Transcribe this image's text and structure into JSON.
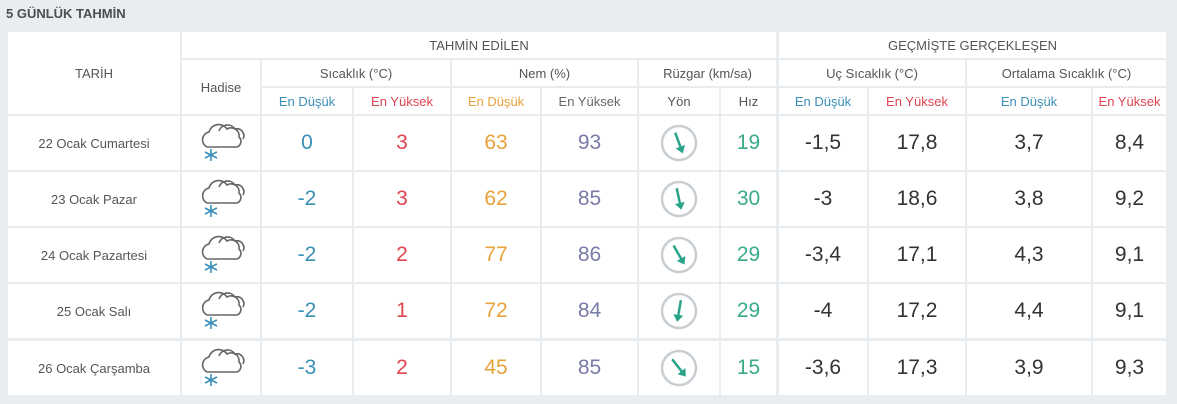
{
  "title": "5 GÜNLÜK TAHMİN",
  "table": {
    "headers": {
      "date": "TARİH",
      "forecast": "TAHMİN EDİLEN",
      "past": "GEÇMİŞTE GERÇEKLEŞEN",
      "event": "Hadise",
      "temperature": "Sıcaklık (°C)",
      "humidity": "Nem (%)",
      "wind": "Rüzgar (km/sa)",
      "extreme": "Uç Sıcaklık (°C)",
      "average": "Ortalama Sıcaklık (°C)",
      "sub": [
        "En Düşük",
        "En Yüksek",
        "En Düşük",
        "En Yüksek",
        "Yön",
        "Hız",
        "En Düşük",
        "En Yüksek",
        "En Düşük",
        "En Yüksek"
      ]
    },
    "rows": [
      [
        "22 Ocak Cumartesi",
        0,
        3,
        63,
        93,
        19,
        "-1,5",
        "17,8",
        "3,7",
        "8,4"
      ],
      [
        "23 Ocak Pazar",
        -2,
        3,
        62,
        85,
        30,
        "-3",
        "18,6",
        "3,8",
        "9,2"
      ],
      [
        "24 Ocak Pazartesi",
        -2,
        2,
        77,
        86,
        29,
        "-3,4",
        "17,1",
        "4,3",
        "9,1"
      ],
      [
        "25 Ocak Salı",
        -2,
        1,
        72,
        84,
        29,
        "-4",
        "17,2",
        "4,4",
        "9,1"
      ],
      [
        "26 Ocak Çarşamba",
        -3,
        2,
        45,
        85,
        15,
        "-3,6",
        "17,3",
        "3,9",
        "9,3"
      ]
    ]
  }
}
